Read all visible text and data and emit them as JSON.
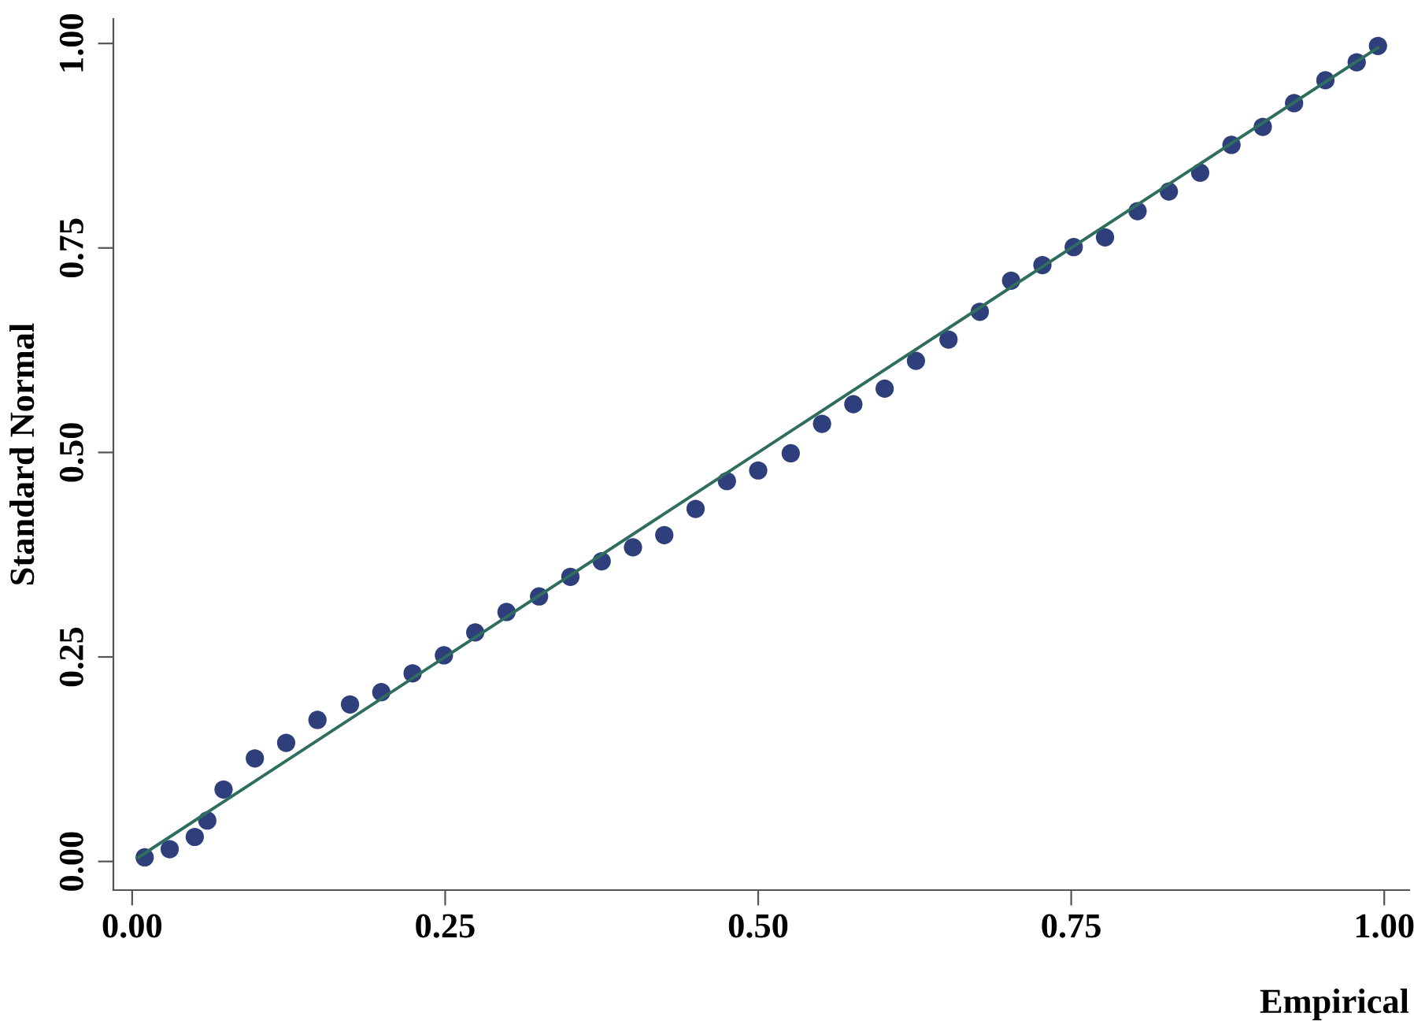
{
  "chart_data": {
    "type": "scatter",
    "xlabel": "Empirical",
    "ylabel": "Standard Normal",
    "xlim": [
      -0.015,
      1.02
    ],
    "ylim": [
      -0.035,
      1.03
    ],
    "xticks": [
      {
        "value": 0,
        "label": "0.00"
      },
      {
        "value": 0.25,
        "label": "0.25"
      },
      {
        "value": 0.5,
        "label": "0.50"
      },
      {
        "value": 0.75,
        "label": "0.75"
      },
      {
        "value": 1,
        "label": "1.00"
      }
    ],
    "yticks": [
      {
        "value": 0,
        "label": "0.00"
      },
      {
        "value": 0.25,
        "label": "0.25"
      },
      {
        "value": 0.5,
        "label": "0.50"
      },
      {
        "value": 0.75,
        "label": "0.75"
      },
      {
        "value": 1,
        "label": "1.00"
      }
    ],
    "grid": false,
    "legend": false,
    "series": [
      {
        "marker": "circle",
        "color": "#2e3f7c",
        "x": [
          0.01,
          0.03,
          0.05,
          0.06,
          0.073,
          0.098,
          0.123,
          0.148,
          0.174,
          0.199,
          0.224,
          0.249,
          0.274,
          0.299,
          0.325,
          0.35,
          0.375,
          0.4,
          0.425,
          0.45,
          0.475,
          0.5,
          0.526,
          0.551,
          0.576,
          0.601,
          0.626,
          0.652,
          0.677,
          0.702,
          0.727,
          0.752,
          0.777,
          0.803,
          0.828,
          0.853,
          0.878,
          0.903,
          0.928,
          0.953,
          0.978,
          0.995
        ],
        "values": [
          0.005,
          0.015,
          0.03,
          0.05,
          0.088,
          0.126,
          0.145,
          0.173,
          0.192,
          0.207,
          0.23,
          0.252,
          0.28,
          0.305,
          0.324,
          0.348,
          0.367,
          0.384,
          0.399,
          0.431,
          0.465,
          0.478,
          0.499,
          0.535,
          0.559,
          0.578,
          0.612,
          0.638,
          0.672,
          0.71,
          0.729,
          0.751,
          0.763,
          0.795,
          0.819,
          0.842,
          0.876,
          0.898,
          0.927,
          0.955,
          0.977,
          0.997
        ]
      },
      {
        "type": "line",
        "color": "#2f6e5f",
        "line_style": "solid",
        "x": [
          0.005,
          0.995
        ],
        "values": [
          0.005,
          0.995
        ]
      }
    ]
  }
}
